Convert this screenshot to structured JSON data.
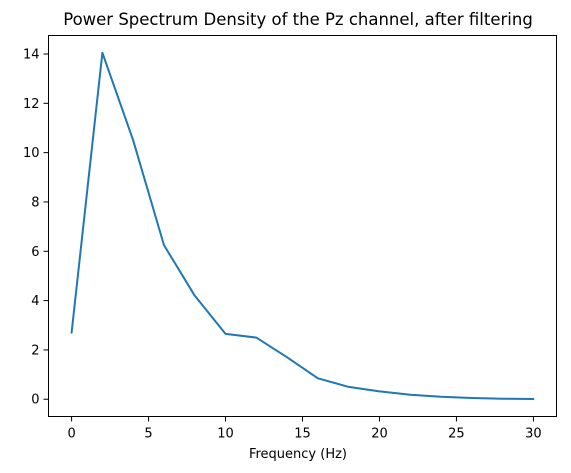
{
  "chart_data": {
    "type": "line",
    "title": "Power Spectrum Density of the Pz channel, after filtering",
    "xlabel": "Frequency (Hz)",
    "ylabel": "",
    "xlim": [
      -1.5,
      31.5
    ],
    "ylim": [
      -0.7,
      14.75
    ],
    "grid": false,
    "x_ticks": [
      0,
      5,
      10,
      15,
      20,
      25,
      30
    ],
    "y_ticks": [
      0,
      2,
      4,
      6,
      8,
      10,
      12,
      14
    ],
    "series": [
      {
        "color": "#1f77b4",
        "x": [
          0,
          2,
          4,
          6,
          8,
          10,
          12,
          14,
          16,
          18,
          20,
          22,
          24,
          26,
          28,
          30
        ],
        "y": [
          2.7,
          14.05,
          10.5,
          6.25,
          4.2,
          2.65,
          2.5,
          1.7,
          0.85,
          0.5,
          0.32,
          0.18,
          0.1,
          0.05,
          0.02,
          0.01
        ]
      }
    ]
  }
}
